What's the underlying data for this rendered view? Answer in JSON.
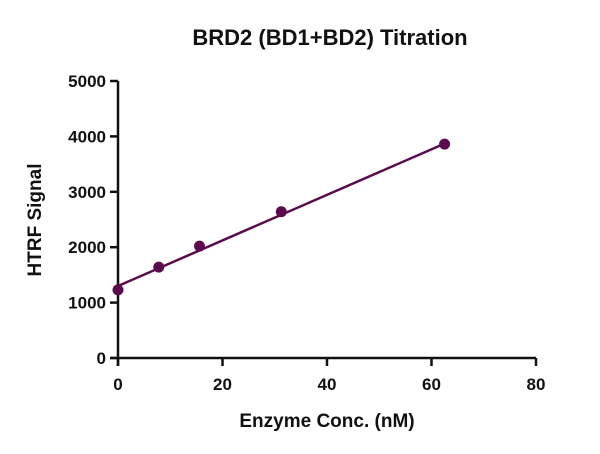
{
  "chart_data": {
    "type": "scatter",
    "title": "BRD2 (BD1+BD2) Titration",
    "xlabel": "Enzyme Conc. (nM)",
    "ylabel": "HTRF Signal",
    "xlim": [
      0,
      80
    ],
    "ylim": [
      0,
      5000
    ],
    "xticks": [
      0,
      20,
      40,
      60,
      80
    ],
    "yticks": [
      0,
      1000,
      2000,
      3000,
      4000,
      5000
    ],
    "grid": false,
    "legend": null,
    "series": [
      {
        "name": "BRD2 (BD1+BD2)",
        "color": "#5c0a4e",
        "x": [
          0,
          7.8,
          15.6,
          31.25,
          62.5
        ],
        "y": [
          1230,
          1640,
          2020,
          2640,
          3860
        ],
        "fit": {
          "type": "linear",
          "x": [
            0,
            62.5
          ],
          "y": [
            1300,
            3870
          ]
        }
      }
    ]
  }
}
